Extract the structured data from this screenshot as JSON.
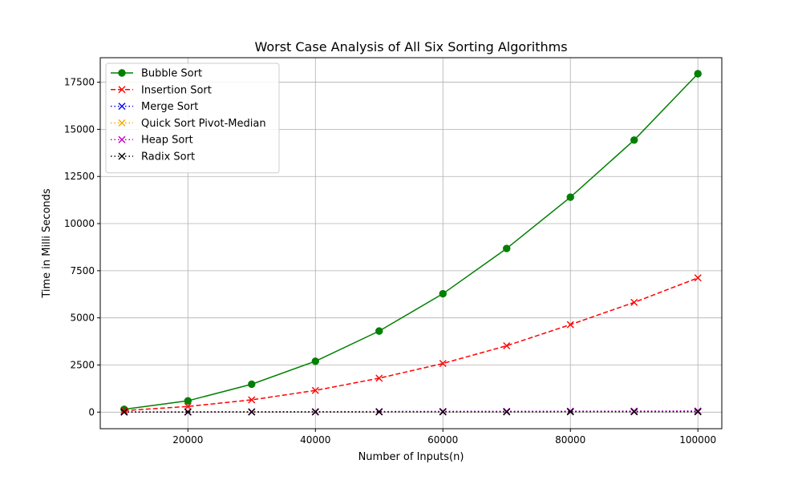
{
  "chart_data": {
    "type": "line",
    "title": "Worst Case Analysis of All Six Sorting Algorithms",
    "xlabel": "Number of Inputs(n)",
    "ylabel": "Time in Milli Seconds",
    "xlim": [
      6250,
      103750
    ],
    "ylim": [
      -880,
      18800
    ],
    "x": [
      10000,
      20000,
      30000,
      40000,
      50000,
      60000,
      70000,
      80000,
      90000,
      100000
    ],
    "x_ticks": [
      20000,
      40000,
      60000,
      80000,
      100000
    ],
    "x_tick_labels": [
      "20000",
      "40000",
      "60000",
      "80000",
      "100000"
    ],
    "y_ticks": [
      0,
      2500,
      5000,
      7500,
      10000,
      12500,
      15000,
      17500
    ],
    "y_tick_labels": [
      "0",
      "2500",
      "5000",
      "7500",
      "10000",
      "12500",
      "15000",
      "17500"
    ],
    "grid": true,
    "legend_position": "top-left",
    "series": [
      {
        "name": "Bubble Sort",
        "color": "#008000",
        "line_style": "solid",
        "marker": "circle",
        "values": [
          150,
          600,
          1480,
          2700,
          4300,
          6280,
          8680,
          11400,
          14430,
          17950
        ]
      },
      {
        "name": "Insertion Sort",
        "color": "#ff0000",
        "line_style": "dashed",
        "marker": "x",
        "values": [
          80,
          300,
          650,
          1150,
          1800,
          2580,
          3520,
          4640,
          5820,
          7120
        ]
      },
      {
        "name": "Merge Sort",
        "color": "#0000ff",
        "line_style": "dotted",
        "marker": "x",
        "values": [
          5,
          10,
          15,
          20,
          25,
          30,
          35,
          40,
          45,
          50
        ]
      },
      {
        "name": "Quick Sort Pivot-Median",
        "color": "#ffa500",
        "line_style": "dotted",
        "marker": "x",
        "values": [
          3,
          6,
          9,
          12,
          15,
          18,
          21,
          24,
          27,
          30
        ]
      },
      {
        "name": "Heap Sort",
        "color": "#bf00bf",
        "line_style": "dotted",
        "marker": "x",
        "values": [
          6,
          12,
          18,
          24,
          30,
          36,
          42,
          48,
          54,
          60
        ]
      },
      {
        "name": "Radix Sort",
        "color": "#000000",
        "line_style": "dotted",
        "marker": "x",
        "values": [
          2,
          4,
          6,
          8,
          10,
          12,
          14,
          16,
          18,
          20
        ]
      }
    ]
  }
}
